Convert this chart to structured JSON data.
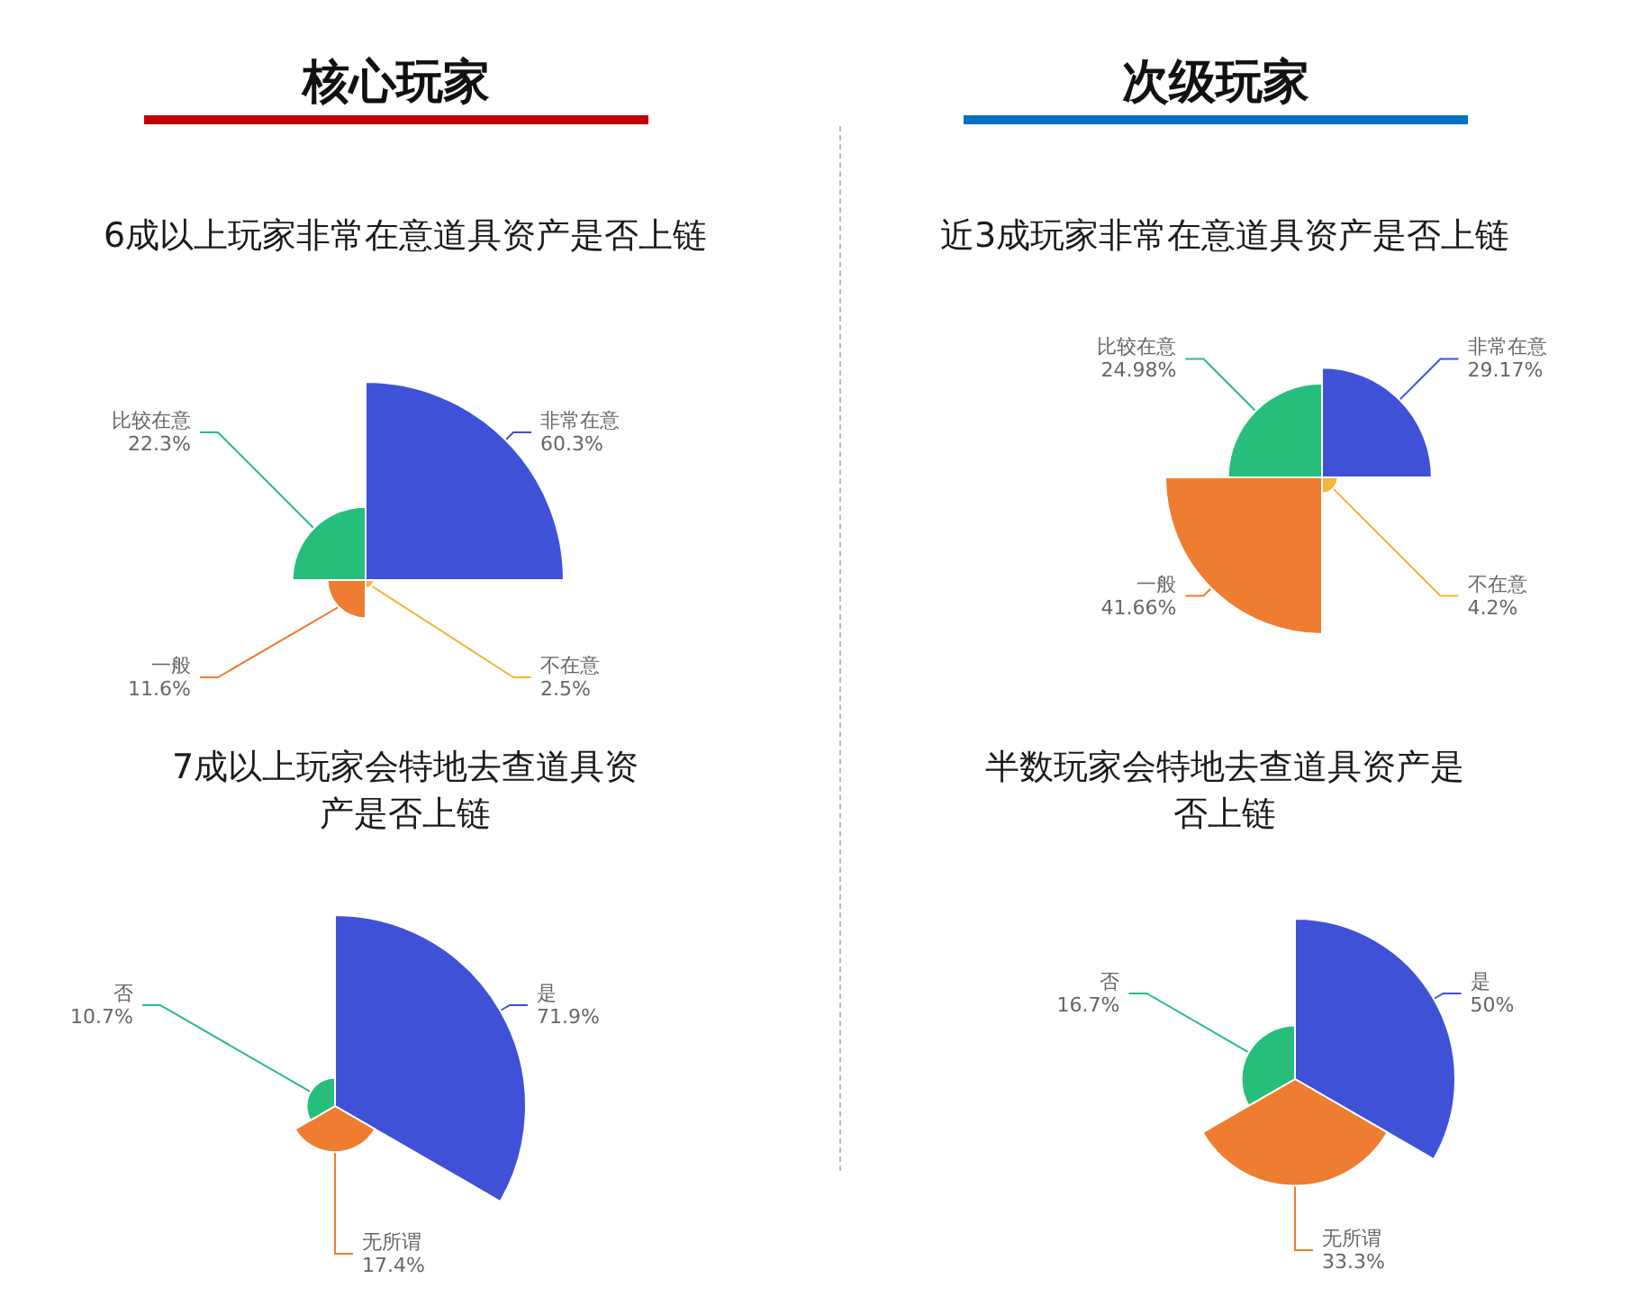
{
  "chart_data": [
    {
      "type": "other",
      "annotations": [
        "核心玩家"
      ],
      "title": "6成以上玩家非常在意道具资产是否上链",
      "categories": [
        "非常在意",
        "不在意",
        "一般",
        "比较在意"
      ],
      "values": [
        60.3,
        2.5,
        11.6,
        22.3
      ],
      "value_labels": [
        "60.3%",
        "2.5%",
        "11.6%",
        "22.3%"
      ],
      "colors": [
        "#3f51d6",
        "#f4b53a",
        "#ee7d31",
        "#27be7b"
      ]
    },
    {
      "type": "other",
      "annotations": [
        "次级玩家"
      ],
      "title": "近3成玩家非常在意道具资产是否上链",
      "categories": [
        "非常在意",
        "不在意",
        "一般",
        "比较在意"
      ],
      "values": [
        29.17,
        4.2,
        41.66,
        24.98
      ],
      "value_labels": [
        "29.17%",
        "4.2%",
        "41.66%",
        "24.98%"
      ],
      "colors": [
        "#3f51d6",
        "#f4b53a",
        "#ee7d31",
        "#27be7b"
      ]
    },
    {
      "type": "other",
      "title": "7成以上玩家会特地去查道具资产是否上链",
      "categories": [
        "是",
        "无所谓",
        "否"
      ],
      "values": [
        71.9,
        17.4,
        10.7
      ],
      "value_labels": [
        "71.9%",
        "17.4%",
        "10.7%"
      ],
      "colors": [
        "#3f51d6",
        "#ee7d31",
        "#27be7b"
      ]
    },
    {
      "type": "other",
      "title": "半数玩家会特地去查道具资产是否上链",
      "categories": [
        "是",
        "无所谓",
        "否"
      ],
      "values": [
        50,
        33.3,
        16.7
      ],
      "value_labels": [
        "50%",
        "33.3%",
        "16.7%"
      ],
      "colors": [
        "#3f51d6",
        "#ee7d31",
        "#27be7b"
      ]
    }
  ]
}
